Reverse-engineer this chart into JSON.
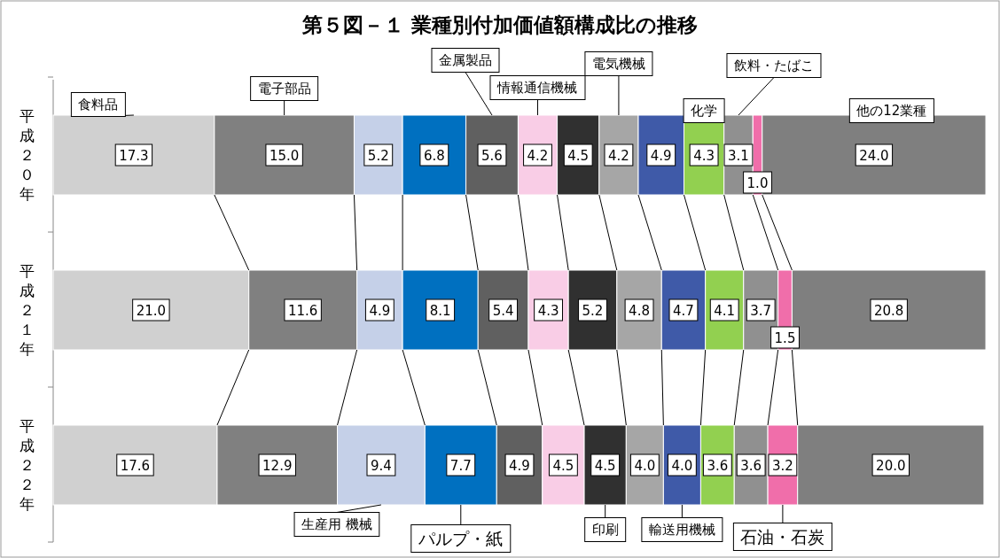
{
  "chart_data": {
    "type": "bar",
    "title": "第５図－１ 業種別付加価値額構成比の推移",
    "orientation": "horizontal",
    "stacked": true,
    "legend": false,
    "categories": [
      "平成２０年",
      "平成２１年",
      "平成２２年"
    ],
    "series": [
      {
        "name": "食料品",
        "color": "#d0d0d0",
        "values": [
          17.3,
          21.0,
          17.6
        ],
        "value_labels": [
          "17.3",
          "21.0",
          "17.6"
        ]
      },
      {
        "name": "電子部品",
        "color": "#808080",
        "values": [
          15.0,
          11.6,
          12.9
        ],
        "value_labels": [
          "15.0",
          "11.6",
          "12.9"
        ]
      },
      {
        "name": "生産用 機械",
        "color": "#c5d0e8",
        "values": [
          5.2,
          4.9,
          9.4
        ],
        "value_labels": [
          "5.2",
          "4.9",
          "9.4"
        ]
      },
      {
        "name": "パルプ・紙",
        "color": "#0070c0",
        "values": [
          6.8,
          8.1,
          7.7
        ],
        "value_labels": [
          "6.8",
          "8.1",
          "7.7"
        ]
      },
      {
        "name": "金属製品",
        "color": "#606060",
        "values": [
          5.6,
          5.4,
          4.9
        ],
        "value_labels": [
          "5.6",
          "5.4",
          "4.9"
        ]
      },
      {
        "name": "情報通信機械",
        "color": "#f9cde6",
        "values": [
          4.2,
          4.3,
          4.5
        ],
        "value_labels": [
          "4.2",
          "4.3",
          "4.5"
        ]
      },
      {
        "name": "印刷",
        "color": "#303030",
        "values": [
          4.5,
          5.2,
          4.5
        ],
        "value_labels": [
          "4.5",
          "5.2",
          "4.5"
        ]
      },
      {
        "name": "電気機械",
        "color": "#a6a6a6",
        "values": [
          4.2,
          4.8,
          4.0
        ],
        "value_labels": [
          "4.2",
          "4.8",
          "4.0"
        ]
      },
      {
        "name": "輸送用機械",
        "color": "#3f5aa8",
        "values": [
          4.9,
          4.7,
          4.0
        ],
        "value_labels": [
          "4.9",
          "4.7",
          "4.0"
        ]
      },
      {
        "name": "化学",
        "color": "#92d050",
        "values": [
          4.3,
          4.1,
          3.6
        ],
        "value_labels": [
          "4.3",
          "4.1",
          "3.6"
        ]
      },
      {
        "name": "飲料・たばこ",
        "color": "#909090",
        "values": [
          3.1,
          3.7,
          3.6
        ],
        "value_labels": [
          "3.1",
          "3.7",
          "3.6"
        ]
      },
      {
        "name": "石油・石炭",
        "color": "#f06eaa",
        "values": [
          1.0,
          1.5,
          3.2
        ],
        "value_labels": [
          "1.0",
          "1.5",
          "3.2"
        ]
      },
      {
        "name": "他の12業種",
        "color": "#7f7f7f",
        "values": [
          24.0,
          20.8,
          20.0
        ],
        "value_labels": [
          "24.0",
          "20.8",
          "20.0"
        ]
      }
    ]
  }
}
